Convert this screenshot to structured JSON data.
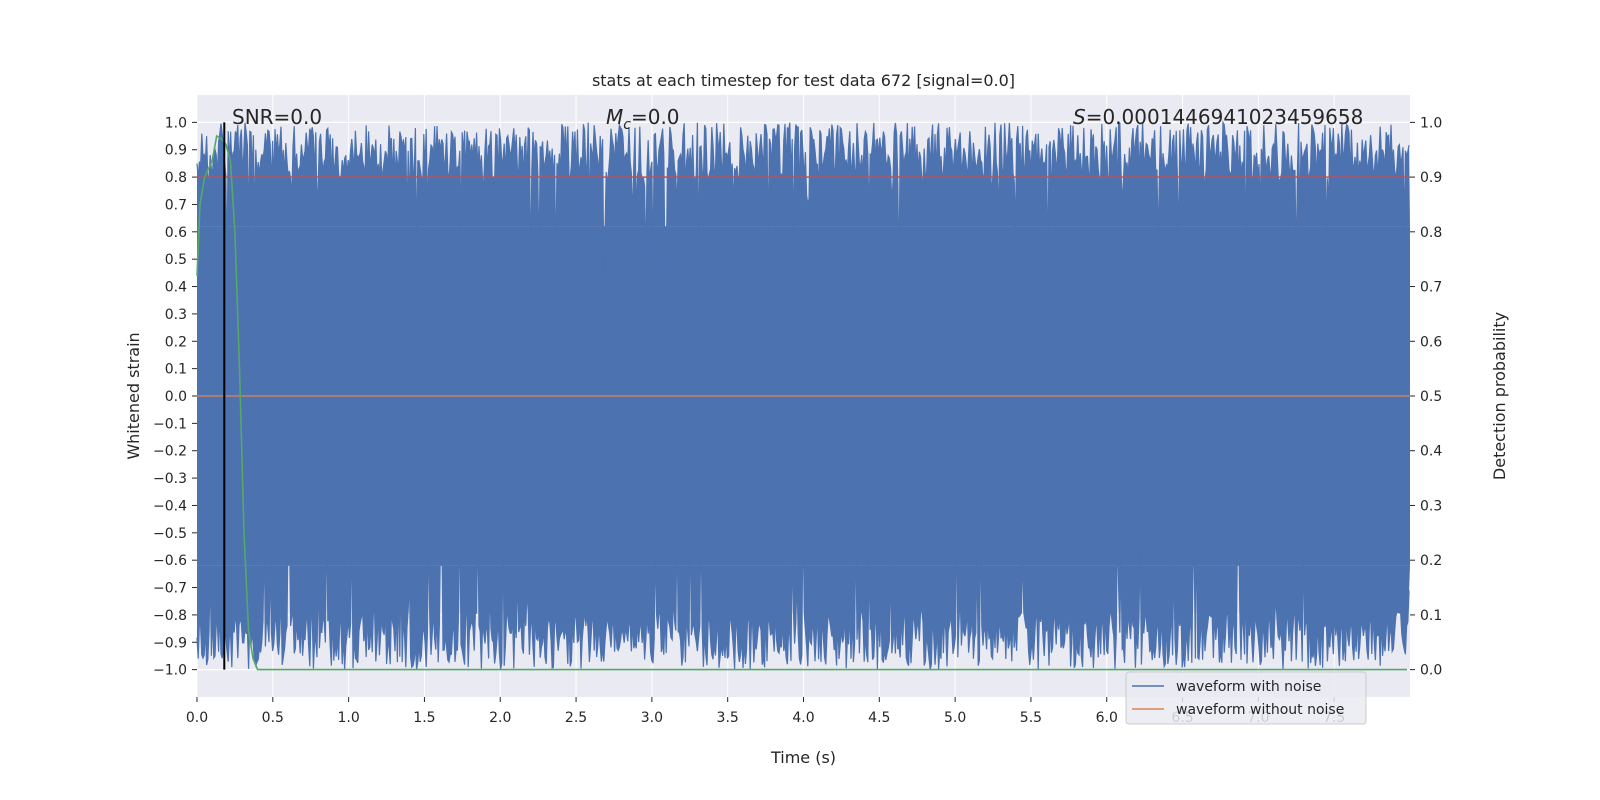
{
  "chart_data": {
    "type": "line",
    "title": "stats at each timestep for test data 672 [signal=0.0]",
    "xlabel": "Time (s)",
    "ylabel": "Whitened strain",
    "ylabel_right": "Detection probability",
    "xlim": [
      0.0,
      8.0
    ],
    "ylim": [
      -1.1,
      1.1
    ],
    "ylim_right": [
      -0.05,
      1.05
    ],
    "x_ticks": [
      "0.0",
      "0.5",
      "1.0",
      "1.5",
      "2.0",
      "2.5",
      "3.0",
      "3.5",
      "4.0",
      "4.5",
      "5.0",
      "5.5",
      "6.0",
      "6.5",
      "7.0",
      "7.5"
    ],
    "y_ticks": [
      "1.0",
      "0.9",
      "0.8",
      "0.7",
      "0.6",
      "0.5",
      "0.4",
      "0.3",
      "0.2",
      "0.1",
      "0.0",
      "−0.1",
      "−0.2",
      "−0.3",
      "−0.4",
      "−0.5",
      "−0.6",
      "−0.7",
      "−0.8",
      "−0.9",
      "−1.0"
    ],
    "y_tick_values": [
      1.0,
      0.9,
      0.8,
      0.7,
      0.6,
      0.5,
      0.4,
      0.3,
      0.2,
      0.1,
      0.0,
      -0.1,
      -0.2,
      -0.3,
      -0.4,
      -0.5,
      -0.6,
      -0.7,
      -0.8,
      -0.9,
      -1.0
    ],
    "y2_ticks": [
      "1.0",
      "0.9",
      "0.8",
      "0.7",
      "0.6",
      "0.5",
      "0.4",
      "0.3",
      "0.2",
      "0.1",
      "0.0"
    ],
    "y2_tick_values": [
      1.0,
      0.9,
      0.8,
      0.7,
      0.6,
      0.5,
      0.4,
      0.3,
      0.2,
      0.1,
      0.0
    ],
    "grid": true,
    "annotations": {
      "snr": "SNR=0.0",
      "mc_symbol": "M",
      "mc_sub": "c",
      "mc_value": "=0.0",
      "s_symbol": "S",
      "s_value": "=0.0001446941023459658"
    },
    "series": [
      {
        "name": "waveform with noise",
        "color": "#4c72b0",
        "axis": "left",
        "description_range": [
          -1.0,
          1.0
        ]
      },
      {
        "name": "waveform without noise",
        "color": "#dd8452",
        "axis": "left",
        "value": 0.0
      },
      {
        "name": "detection probability",
        "color": "#55a868",
        "axis": "right",
        "x": [
          0.0,
          0.02,
          0.05,
          0.1,
          0.13,
          0.16,
          0.19,
          0.22,
          0.25,
          0.28,
          0.31,
          0.34,
          0.37,
          0.4,
          0.5,
          1.0,
          2.0,
          3.0,
          4.0,
          5.0,
          6.0,
          7.0,
          7.98
        ],
        "y": [
          0.72,
          0.85,
          0.9,
          0.93,
          0.975,
          0.97,
          0.96,
          0.93,
          0.8,
          0.55,
          0.25,
          0.07,
          0.02,
          0.0,
          0.0,
          0.0,
          0.0,
          0.0,
          0.0,
          0.0,
          0.0,
          0.0,
          0.0
        ]
      }
    ],
    "threshold_line": {
      "axis": "right",
      "value": 0.9,
      "color": "#c44e52"
    },
    "event_marker": {
      "x": 0.18,
      "color": "#000000"
    },
    "legend": {
      "placement": "lower-right",
      "entries": [
        {
          "label": "waveform with noise",
          "color": "#4c72b0"
        },
        {
          "label": "waveform without noise",
          "color": "#dd8452"
        }
      ]
    },
    "colors": {
      "axes_bg": "#eaeaf2",
      "grid": "#ffffff",
      "text": "#262626"
    }
  }
}
